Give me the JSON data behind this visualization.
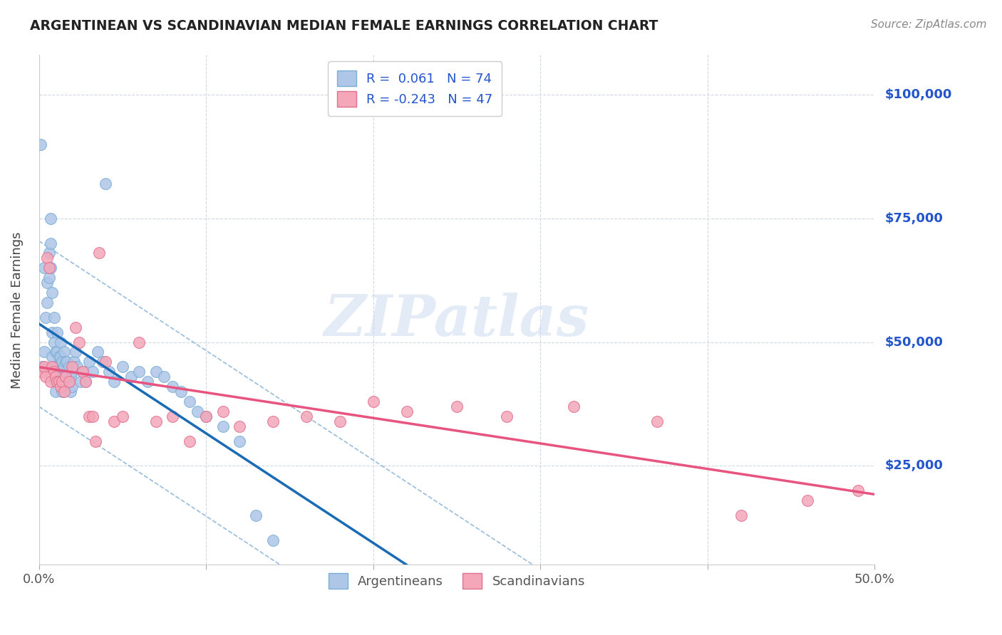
{
  "title": "ARGENTINEAN VS SCANDINAVIAN MEDIAN FEMALE EARNINGS CORRELATION CHART",
  "source": "Source: ZipAtlas.com",
  "ylabel": "Median Female Earnings",
  "ytick_labels": [
    "$25,000",
    "$50,000",
    "$75,000",
    "$100,000"
  ],
  "ytick_values": [
    25000,
    50000,
    75000,
    100000
  ],
  "ylim": [
    5000,
    108000
  ],
  "xlim": [
    0.0,
    0.5
  ],
  "argentinean_color": "#aec6e8",
  "scandinavian_color": "#f4a7b9",
  "trendline_argentinean_color": "#1a6bb5",
  "trendline_scandinavian_color": "#e75480",
  "background_color": "#ffffff",
  "grid_color": "#d0d8e8",
  "watermark": "ZIPatlas",
  "arg_R": "0.061",
  "arg_N": "74",
  "scan_R": "-0.243",
  "scan_N": "47",
  "argentinean_x": [
    0.001,
    0.002,
    0.003,
    0.003,
    0.004,
    0.005,
    0.005,
    0.006,
    0.006,
    0.007,
    0.007,
    0.007,
    0.008,
    0.008,
    0.008,
    0.009,
    0.009,
    0.009,
    0.01,
    0.01,
    0.01,
    0.01,
    0.011,
    0.011,
    0.011,
    0.012,
    0.012,
    0.012,
    0.013,
    0.013,
    0.013,
    0.014,
    0.014,
    0.014,
    0.015,
    0.015,
    0.016,
    0.016,
    0.017,
    0.017,
    0.018,
    0.018,
    0.019,
    0.019,
    0.02,
    0.02,
    0.021,
    0.022,
    0.023,
    0.025,
    0.026,
    0.028,
    0.03,
    0.032,
    0.035,
    0.038,
    0.04,
    0.042,
    0.045,
    0.05,
    0.055,
    0.06,
    0.065,
    0.07,
    0.075,
    0.08,
    0.085,
    0.09,
    0.095,
    0.1,
    0.11,
    0.12,
    0.13,
    0.14
  ],
  "argentinean_y": [
    90000,
    45000,
    48000,
    65000,
    55000,
    62000,
    58000,
    68000,
    63000,
    75000,
    70000,
    65000,
    52000,
    60000,
    47000,
    55000,
    50000,
    45000,
    48000,
    44000,
    42000,
    40000,
    52000,
    48000,
    45000,
    47000,
    44000,
    42000,
    50000,
    47000,
    44000,
    46000,
    43000,
    40000,
    48000,
    45000,
    46000,
    43000,
    46000,
    43000,
    45000,
    42000,
    43000,
    40000,
    44000,
    41000,
    46000,
    48000,
    45000,
    42000,
    44000,
    42000,
    46000,
    44000,
    48000,
    46000,
    82000,
    44000,
    42000,
    45000,
    43000,
    44000,
    42000,
    44000,
    43000,
    41000,
    40000,
    38000,
    36000,
    35000,
    33000,
    30000,
    15000,
    10000
  ],
  "scandinavian_x": [
    0.002,
    0.003,
    0.004,
    0.005,
    0.006,
    0.007,
    0.008,
    0.009,
    0.01,
    0.011,
    0.012,
    0.013,
    0.014,
    0.015,
    0.016,
    0.018,
    0.02,
    0.022,
    0.024,
    0.026,
    0.028,
    0.03,
    0.032,
    0.034,
    0.036,
    0.04,
    0.045,
    0.05,
    0.06,
    0.07,
    0.08,
    0.09,
    0.1,
    0.11,
    0.12,
    0.14,
    0.16,
    0.18,
    0.2,
    0.22,
    0.25,
    0.28,
    0.32,
    0.37,
    0.42,
    0.46,
    0.49
  ],
  "scandinavian_y": [
    44000,
    45000,
    43000,
    67000,
    65000,
    42000,
    45000,
    44000,
    43000,
    42000,
    42000,
    41000,
    42000,
    40000,
    43000,
    42000,
    45000,
    53000,
    50000,
    44000,
    42000,
    35000,
    35000,
    30000,
    68000,
    46000,
    34000,
    35000,
    50000,
    34000,
    35000,
    30000,
    35000,
    36000,
    33000,
    34000,
    35000,
    34000,
    38000,
    36000,
    37000,
    35000,
    37000,
    34000,
    15000,
    18000,
    20000
  ]
}
